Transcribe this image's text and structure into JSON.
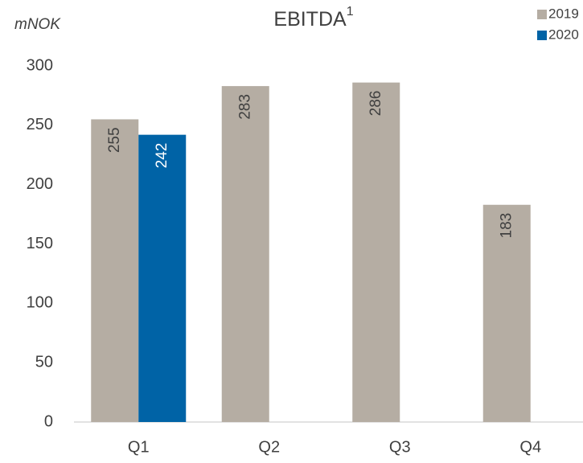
{
  "chart_data": {
    "type": "bar",
    "title": "EBITDA",
    "title_superscript": "1",
    "y_axis_label": "mNOK",
    "categories": [
      "Q1",
      "Q2",
      "Q3",
      "Q4"
    ],
    "series": [
      {
        "name": "2019",
        "color": "#b5ada3",
        "values": [
          255,
          283,
          286,
          183
        ]
      },
      {
        "name": "2020",
        "color": "#0063a6",
        "values": [
          242,
          null,
          null,
          null
        ]
      }
    ],
    "ylim": [
      0,
      300
    ],
    "yticks": [
      0,
      50,
      100,
      150,
      200,
      250,
      300
    ],
    "grid": false,
    "legend": "top-right",
    "data_labels": true
  }
}
